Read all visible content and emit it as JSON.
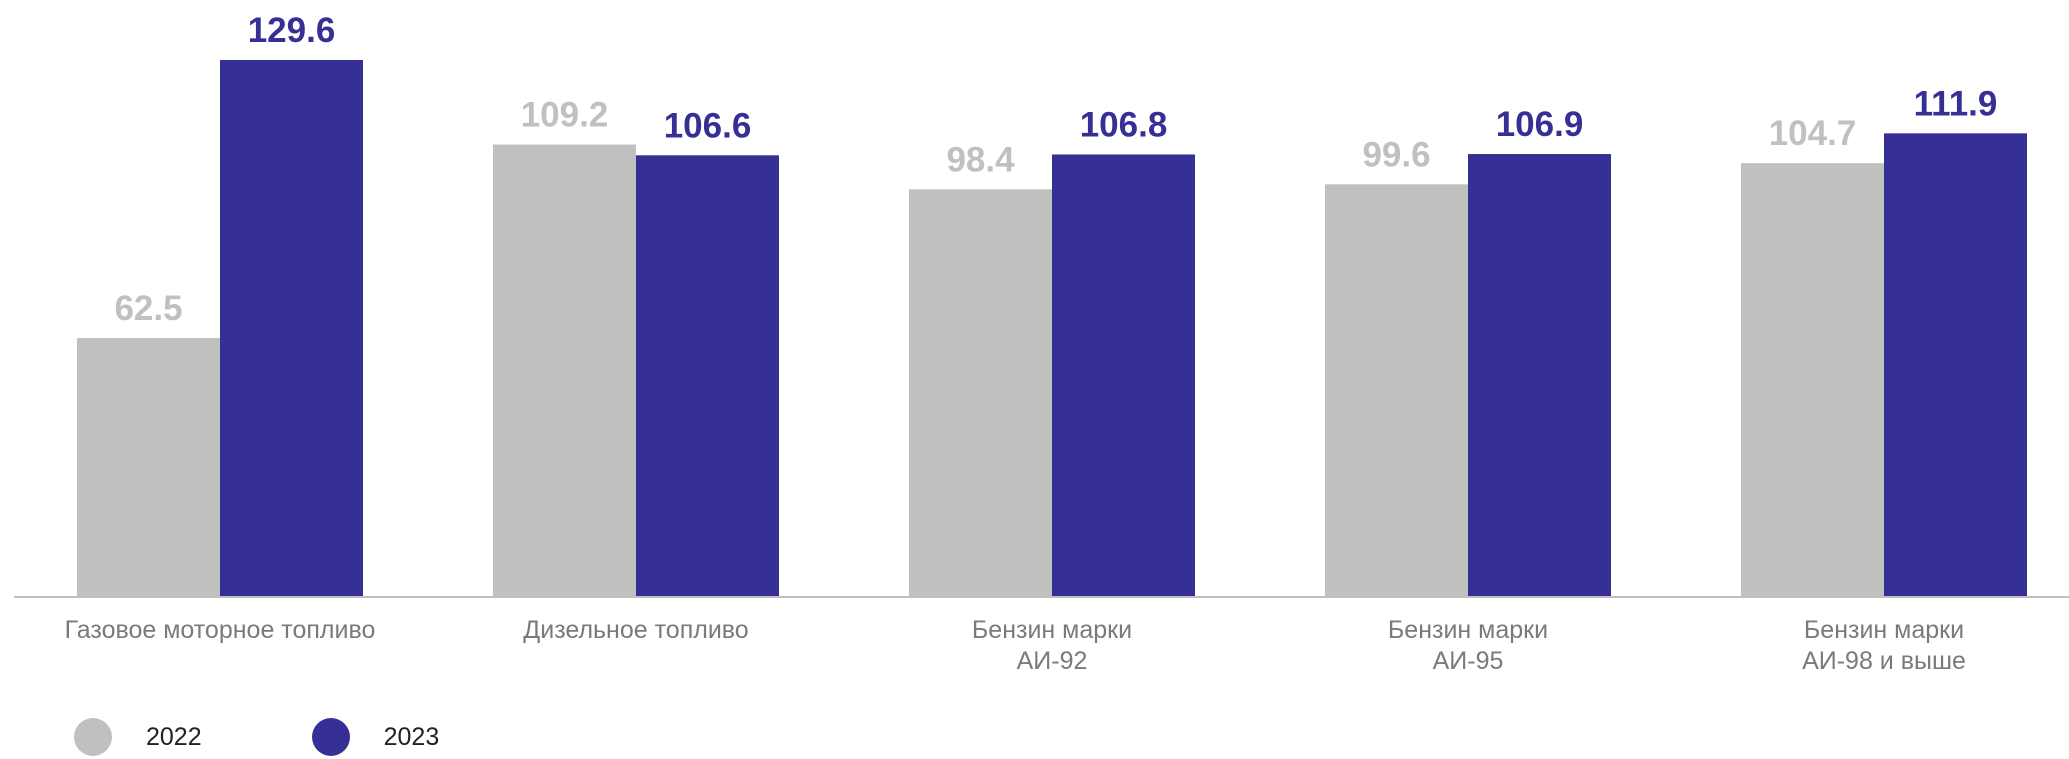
{
  "chart_data": {
    "type": "bar",
    "categories": [
      [
        "Газовое моторное топливо"
      ],
      [
        "Дизельное топливо"
      ],
      [
        "Бензин марки",
        "АИ-92"
      ],
      [
        "Бензин марки",
        "АИ-95"
      ],
      [
        "Бензин марки",
        "АИ-98 и выше"
      ]
    ],
    "series": [
      {
        "name": "2022",
        "color": "#c0c0c0",
        "values": [
          62.5,
          109.2,
          98.4,
          99.6,
          104.7
        ]
      },
      {
        "name": "2023",
        "color": "#362f94",
        "values": [
          129.6,
          106.6,
          106.8,
          106.9,
          111.9
        ]
      }
    ],
    "ylim": [
      0,
      129.6
    ],
    "grid": false,
    "legend_position": "bottom-left",
    "axis_color": "#c0c0c0"
  }
}
